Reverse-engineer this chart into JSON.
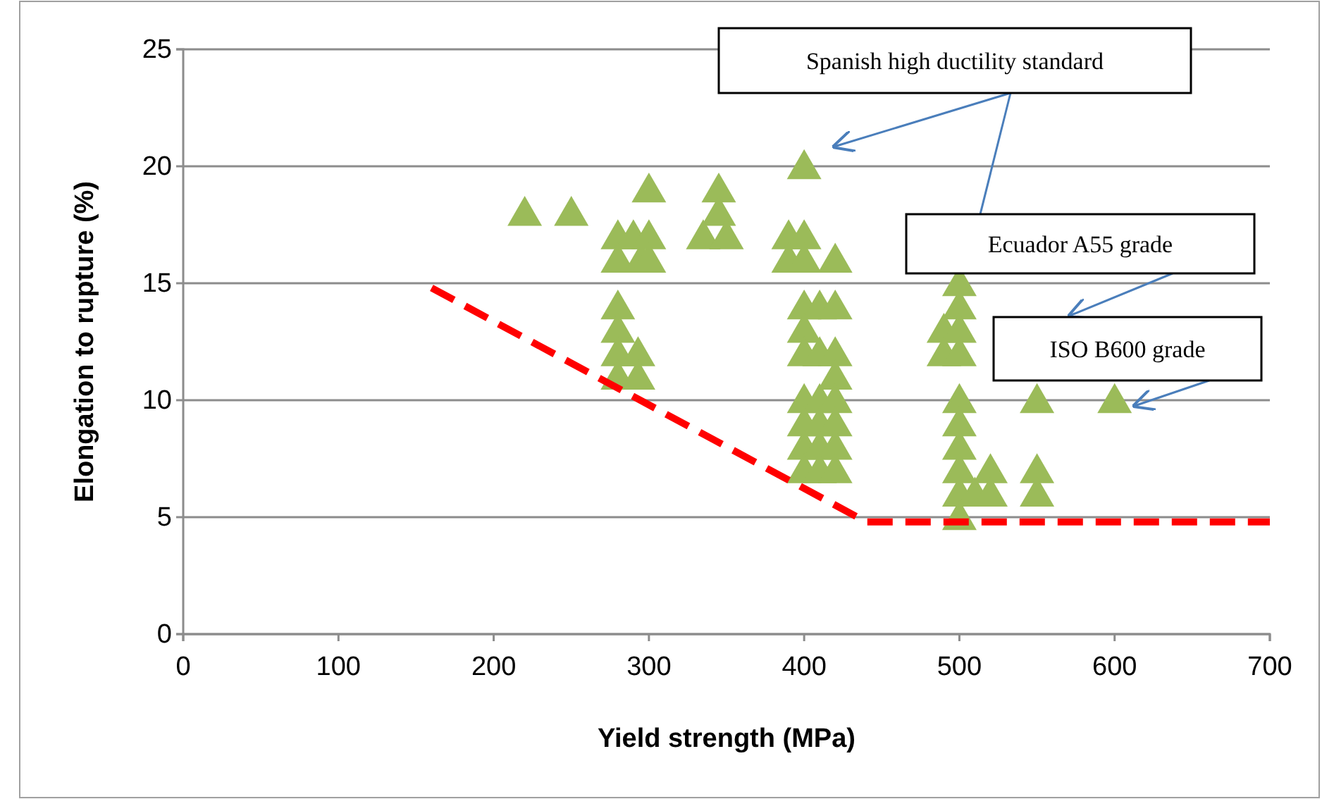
{
  "chart_data": {
    "type": "scatter",
    "xlabel": "Yield strength (MPa)",
    "ylabel": "Elongation to rupture (%)",
    "xlim": [
      0,
      700
    ],
    "xticks": [
      0,
      100,
      200,
      300,
      400,
      500,
      600,
      700
    ],
    "ylim": [
      0,
      25
    ],
    "yticks": [
      0,
      5,
      10,
      15,
      20,
      25
    ],
    "grid": "y",
    "series": [
      {
        "marker": "triangle",
        "color": "#9bbb59",
        "x": [
          220,
          250,
          280,
          280,
          290,
          295,
          300,
          300,
          300,
          280,
          280,
          280,
          280,
          293,
          293,
          345,
          345,
          335,
          350,
          400,
          390,
          400,
          390,
          400,
          420,
          400,
          410,
          420,
          400,
          400,
          410,
          420,
          420,
          400,
          410,
          420,
          400,
          410,
          420,
          400,
          410,
          420,
          400,
          410,
          420,
          500,
          500,
          490,
          500,
          490,
          500,
          500,
          500,
          500,
          500,
          500,
          500,
          510,
          520,
          520,
          550,
          550,
          550,
          600
        ],
        "values": [
          18,
          18,
          17,
          16,
          17,
          16,
          19,
          17,
          16,
          14,
          13,
          12,
          11,
          12,
          11,
          19,
          18,
          17,
          17,
          20,
          17,
          17,
          16,
          16,
          16,
          14,
          14,
          14,
          13,
          12,
          12,
          12,
          11,
          10,
          10,
          10,
          9,
          9,
          9,
          8,
          8,
          8,
          7,
          7,
          7,
          15,
          14,
          13,
          13,
          12,
          12,
          10,
          9,
          8,
          7,
          6,
          5,
          6,
          7,
          6,
          10,
          7,
          6,
          10
        ]
      },
      {
        "type": "line",
        "line_style": "dashed",
        "marker": "none",
        "color": "#ff0000",
        "x": [
          160,
          440,
          700
        ],
        "values": [
          14.8,
          4.8,
          4.8
        ]
      }
    ],
    "annotations": [
      "Spanish high ductility standard",
      "Ecuador A55 grade",
      "ISO B600 grade"
    ]
  }
}
